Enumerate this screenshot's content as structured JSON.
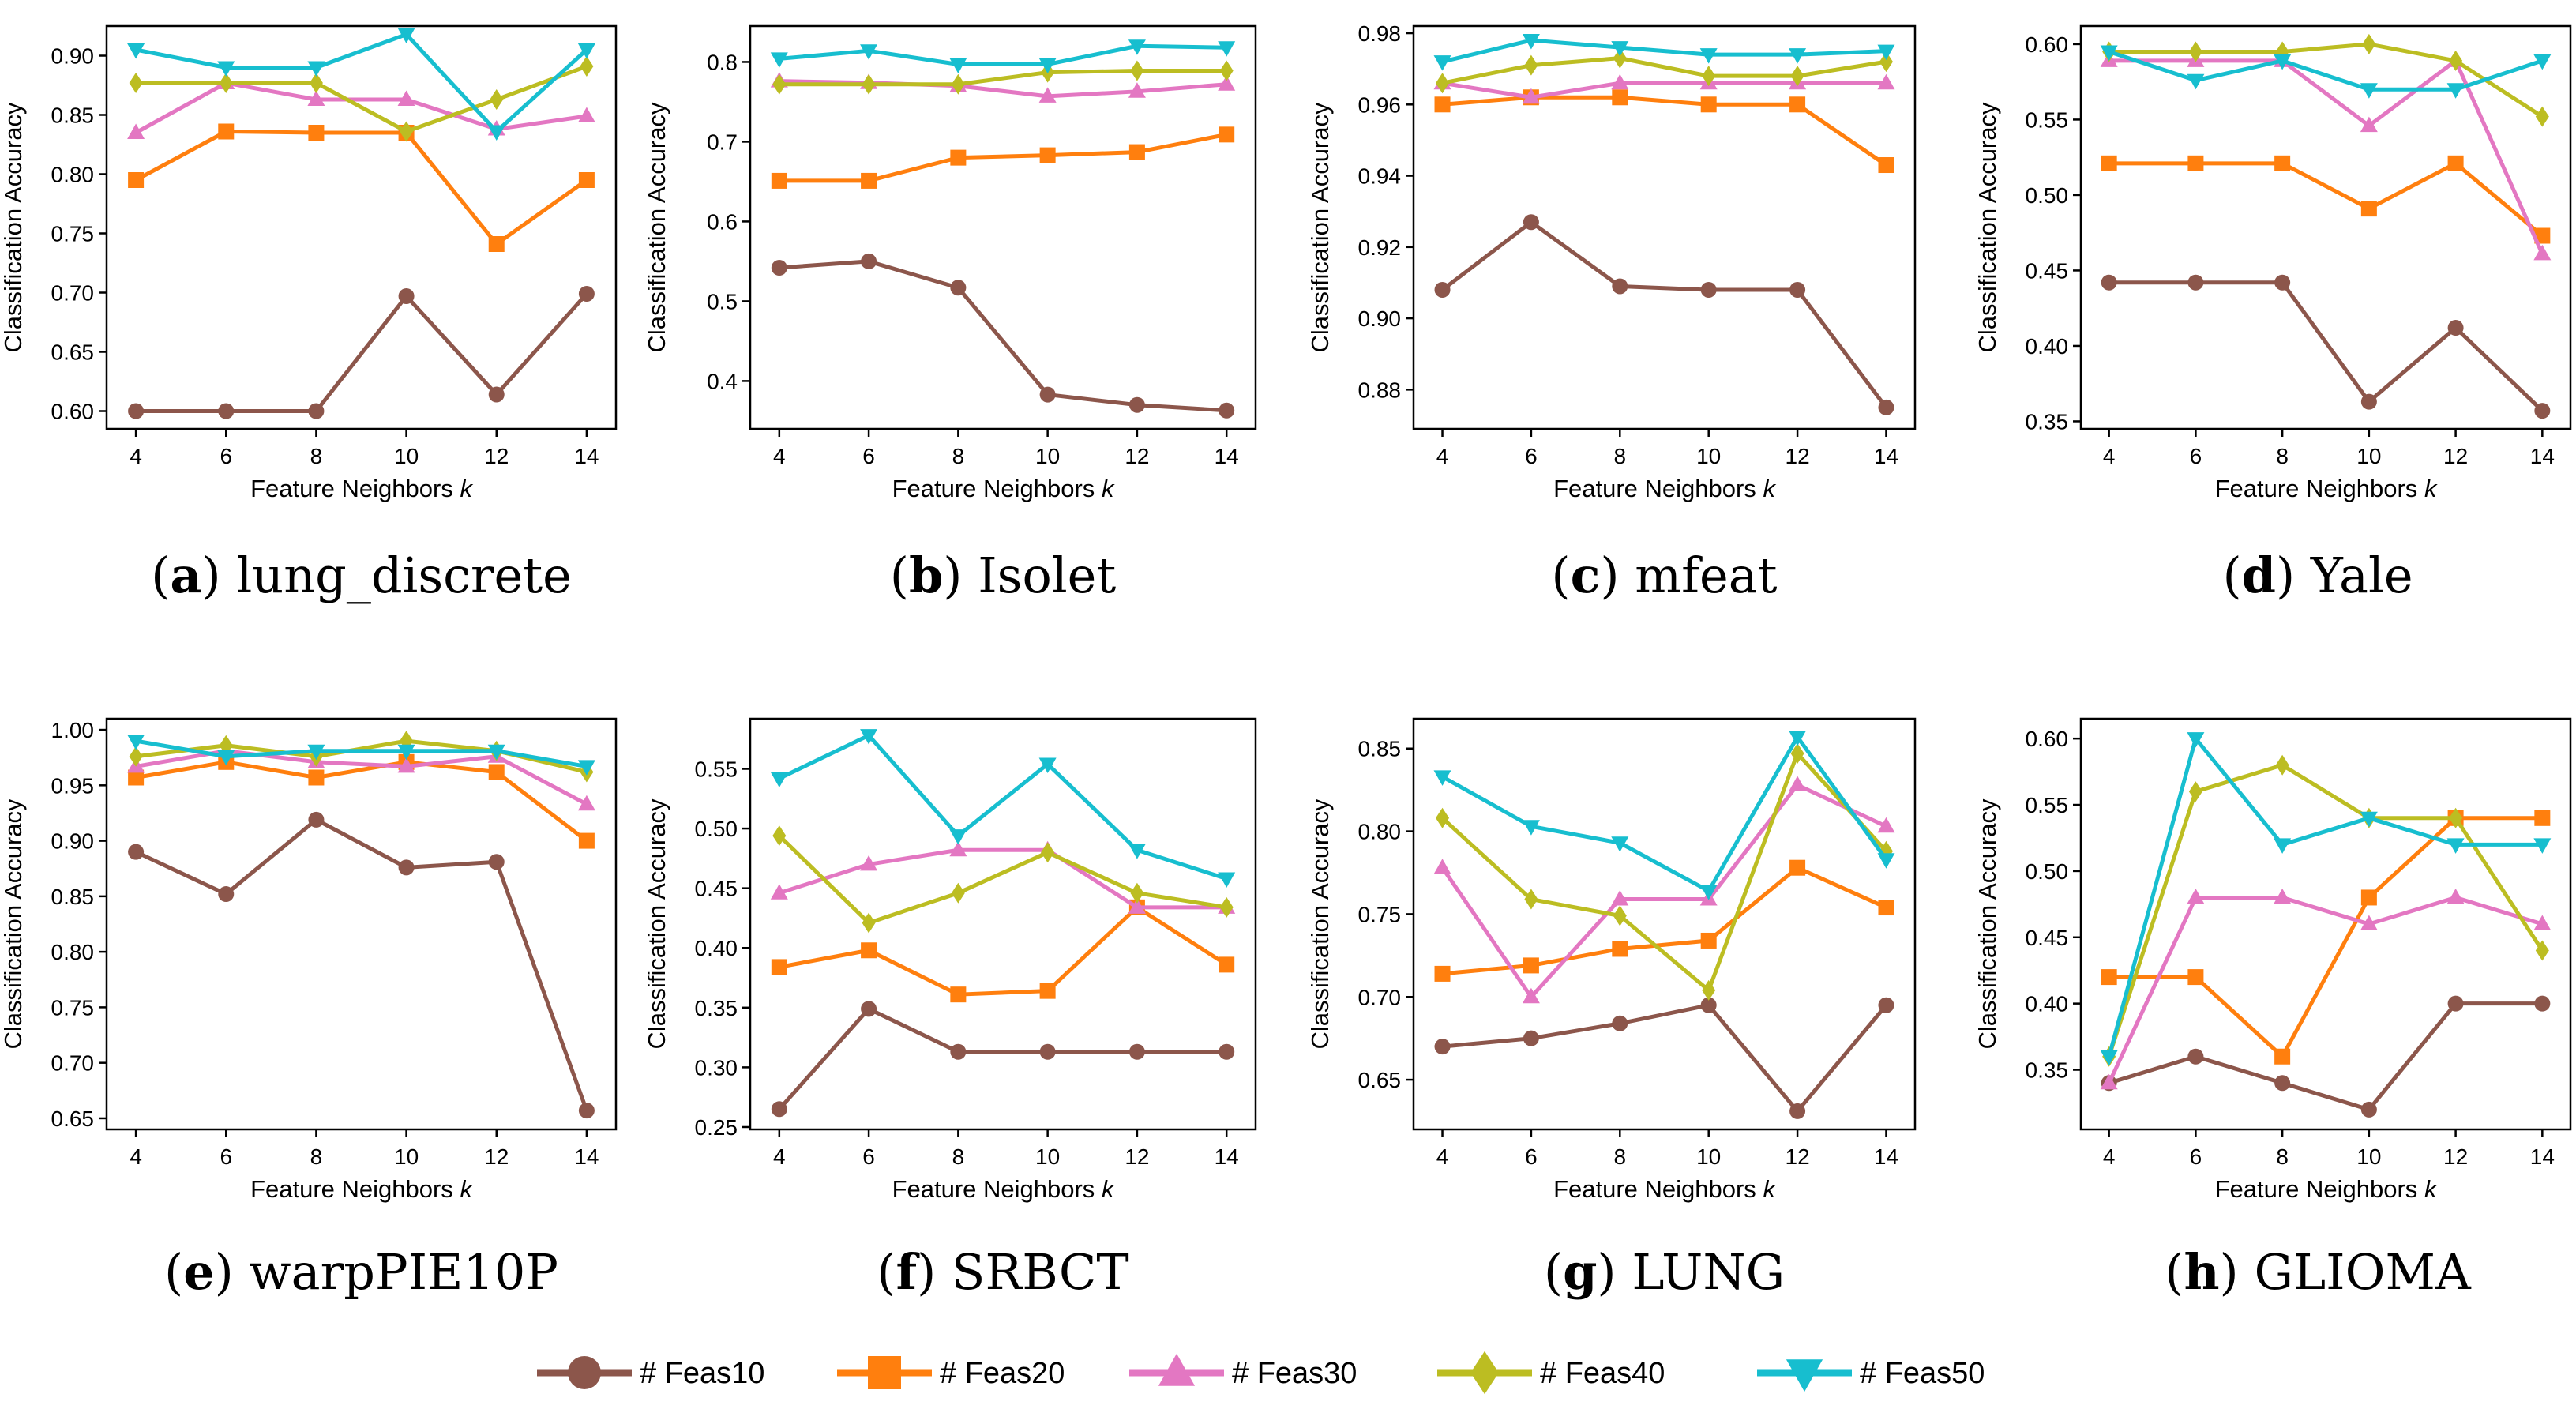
{
  "series_styles": [
    {
      "name": "# Feas10",
      "color": "#8c564b",
      "marker": "circle"
    },
    {
      "name": "# Feas20",
      "color": "#ff7f0e",
      "marker": "square"
    },
    {
      "name": "# Feas30",
      "color": "#e377c2",
      "marker": "triangle-up"
    },
    {
      "name": "# Feas40",
      "color": "#bcbd22",
      "marker": "diamond"
    },
    {
      "name": "# Feas50",
      "color": "#17becf",
      "marker": "triangle-down"
    }
  ],
  "chart_data": [
    {
      "type": "line",
      "letter": "a",
      "caption": "lung_discrete",
      "x": [
        4,
        6,
        8,
        10,
        12,
        14
      ],
      "xlabel": "Feature Neighbors",
      "xlabel_var": "k",
      "ylabel": "Classification Accuracy",
      "ylim": [
        0.585,
        0.925
      ],
      "yticks": [
        "0.60",
        "0.65",
        "0.70",
        "0.75",
        "0.80",
        "0.85",
        "0.90"
      ],
      "xticks": [
        "4",
        "6",
        "8",
        "10",
        "12",
        "14"
      ],
      "series": [
        {
          "name": "# Feas10",
          "values": [
            0.6,
            0.6,
            0.6,
            0.697,
            0.614,
            0.699
          ]
        },
        {
          "name": "# Feas20",
          "values": [
            0.795,
            0.836,
            0.835,
            0.835,
            0.741,
            0.795
          ]
        },
        {
          "name": "# Feas30",
          "values": [
            0.835,
            0.877,
            0.863,
            0.863,
            0.838,
            0.849
          ]
        },
        {
          "name": "# Feas40",
          "values": [
            0.877,
            0.877,
            0.877,
            0.836,
            0.863,
            0.891
          ]
        },
        {
          "name": "# Feas50",
          "values": [
            0.905,
            0.89,
            0.89,
            0.918,
            0.836,
            0.905
          ]
        }
      ]
    },
    {
      "type": "line",
      "letter": "b",
      "caption": "Isolet",
      "x": [
        4,
        6,
        8,
        10,
        12,
        14
      ],
      "xlabel": "Feature Neighbors",
      "xlabel_var": "k",
      "ylabel": "Classification Accuracy",
      "ylim": [
        0.34,
        0.845
      ],
      "yticks": [
        "0.4",
        "0.5",
        "0.6",
        "0.7",
        "0.8"
      ],
      "xticks": [
        "4",
        "6",
        "8",
        "10",
        "12",
        "14"
      ],
      "series": [
        {
          "name": "# Feas10",
          "values": [
            0.542,
            0.55,
            0.517,
            0.383,
            0.37,
            0.363
          ]
        },
        {
          "name": "# Feas20",
          "values": [
            0.651,
            0.651,
            0.68,
            0.683,
            0.687,
            0.709
          ]
        },
        {
          "name": "# Feas30",
          "values": [
            0.776,
            0.774,
            0.77,
            0.757,
            0.763,
            0.772
          ]
        },
        {
          "name": "# Feas40",
          "values": [
            0.772,
            0.772,
            0.772,
            0.787,
            0.789,
            0.789
          ]
        },
        {
          "name": "# Feas50",
          "values": [
            0.804,
            0.814,
            0.797,
            0.797,
            0.82,
            0.818
          ]
        }
      ]
    },
    {
      "type": "line",
      "letter": "c",
      "caption": "mfeat",
      "x": [
        4,
        6,
        8,
        10,
        12,
        14
      ],
      "xlabel": "Feature Neighbors",
      "xlabel_var": "k",
      "ylabel": "Classification Accuracy",
      "ylim": [
        0.869,
        0.982
      ],
      "yticks": [
        "0.88",
        "0.90",
        "0.92",
        "0.94",
        "0.96",
        "0.98"
      ],
      "xticks": [
        "4",
        "6",
        "8",
        "10",
        "12",
        "14"
      ],
      "series": [
        {
          "name": "# Feas10",
          "values": [
            0.908,
            0.927,
            0.909,
            0.908,
            0.908,
            0.875
          ]
        },
        {
          "name": "# Feas20",
          "values": [
            0.96,
            0.962,
            0.962,
            0.96,
            0.96,
            0.943
          ]
        },
        {
          "name": "# Feas30",
          "values": [
            0.966,
            0.962,
            0.966,
            0.966,
            0.966,
            0.966
          ]
        },
        {
          "name": "# Feas40",
          "values": [
            0.966,
            0.971,
            0.973,
            0.968,
            0.968,
            0.972
          ]
        },
        {
          "name": "# Feas50",
          "values": [
            0.972,
            0.978,
            0.976,
            0.974,
            0.974,
            0.975
          ]
        }
      ]
    },
    {
      "type": "line",
      "letter": "d",
      "caption": "Yale",
      "x": [
        4,
        6,
        8,
        10,
        12,
        14
      ],
      "xlabel": "Feature Neighbors",
      "xlabel_var": "k",
      "ylabel": "Classification Accuracy",
      "ylim": [
        0.345,
        0.612
      ],
      "yticks": [
        "0.35",
        "0.40",
        "0.45",
        "0.50",
        "0.55",
        "0.60"
      ],
      "xticks": [
        "4",
        "6",
        "8",
        "10",
        "12",
        "14"
      ],
      "series": [
        {
          "name": "# Feas10",
          "values": [
            0.442,
            0.442,
            0.442,
            0.363,
            0.412,
            0.357
          ]
        },
        {
          "name": "# Feas20",
          "values": [
            0.521,
            0.521,
            0.521,
            0.491,
            0.521,
            0.473
          ]
        },
        {
          "name": "# Feas30",
          "values": [
            0.589,
            0.589,
            0.589,
            0.546,
            0.589,
            0.461
          ]
        },
        {
          "name": "# Feas40",
          "values": [
            0.595,
            0.595,
            0.595,
            0.6,
            0.589,
            0.552
          ]
        },
        {
          "name": "# Feas50",
          "values": [
            0.595,
            0.576,
            0.589,
            0.57,
            0.57,
            0.589
          ]
        }
      ]
    },
    {
      "type": "line",
      "letter": "e",
      "caption": "warpPIE10P",
      "x": [
        4,
        6,
        8,
        10,
        12,
        14
      ],
      "xlabel": "Feature Neighbors",
      "xlabel_var": "k",
      "ylabel": "Classification Accuracy",
      "ylim": [
        0.64,
        1.01
      ],
      "yticks": [
        "0.65",
        "0.70",
        "0.75",
        "0.80",
        "0.85",
        "0.90",
        "0.95",
        "1.00"
      ],
      "xticks": [
        "4",
        "6",
        "8",
        "10",
        "12",
        "14"
      ],
      "series": [
        {
          "name": "# Feas10",
          "values": [
            0.89,
            0.852,
            0.919,
            0.876,
            0.881,
            0.657
          ]
        },
        {
          "name": "# Feas20",
          "values": [
            0.957,
            0.971,
            0.957,
            0.971,
            0.962,
            0.9
          ]
        },
        {
          "name": "# Feas30",
          "values": [
            0.967,
            0.981,
            0.971,
            0.967,
            0.976,
            0.933
          ]
        },
        {
          "name": "# Feas40",
          "values": [
            0.976,
            0.986,
            0.976,
            0.99,
            0.981,
            0.962
          ]
        },
        {
          "name": "# Feas50",
          "values": [
            0.99,
            0.976,
            0.981,
            0.981,
            0.981,
            0.967
          ]
        }
      ]
    },
    {
      "type": "line",
      "letter": "f",
      "caption": "SRBCT",
      "x": [
        4,
        6,
        8,
        10,
        12,
        14
      ],
      "xlabel": "Feature Neighbors",
      "xlabel_var": "k",
      "ylabel": "Classification Accuracy",
      "ylim": [
        0.248,
        0.592
      ],
      "yticks": [
        "0.25",
        "0.30",
        "0.35",
        "0.40",
        "0.45",
        "0.50",
        "0.55"
      ],
      "xticks": [
        "4",
        "6",
        "8",
        "10",
        "12",
        "14"
      ],
      "series": [
        {
          "name": "# Feas10",
          "values": [
            0.265,
            0.349,
            0.313,
            0.313,
            0.313,
            0.313
          ]
        },
        {
          "name": "# Feas20",
          "values": [
            0.384,
            0.398,
            0.361,
            0.364,
            0.434,
            0.386
          ]
        },
        {
          "name": "# Feas30",
          "values": [
            0.446,
            0.47,
            0.482,
            0.482,
            0.434,
            0.434
          ]
        },
        {
          "name": "# Feas40",
          "values": [
            0.494,
            0.421,
            0.446,
            0.48,
            0.446,
            0.434
          ]
        },
        {
          "name": "# Feas50",
          "values": [
            0.542,
            0.578,
            0.494,
            0.554,
            0.482,
            0.458
          ]
        }
      ]
    },
    {
      "type": "line",
      "letter": "g",
      "caption": "LUNG",
      "x": [
        4,
        6,
        8,
        10,
        12,
        14
      ],
      "xlabel": "Feature Neighbors",
      "xlabel_var": "k",
      "ylabel": "Classification Accuracy",
      "ylim": [
        0.62,
        0.868
      ],
      "yticks": [
        "0.65",
        "0.70",
        "0.75",
        "0.80",
        "0.85"
      ],
      "xticks": [
        "4",
        "6",
        "8",
        "10",
        "12",
        "14"
      ],
      "series": [
        {
          "name": "# Feas10",
          "values": [
            0.67,
            0.675,
            0.684,
            0.695,
            0.631,
            0.695
          ]
        },
        {
          "name": "# Feas20",
          "values": [
            0.714,
            0.719,
            0.729,
            0.734,
            0.778,
            0.754
          ]
        },
        {
          "name": "# Feas30",
          "values": [
            0.778,
            0.7,
            0.759,
            0.759,
            0.828,
            0.803
          ]
        },
        {
          "name": "# Feas40",
          "values": [
            0.808,
            0.759,
            0.749,
            0.704,
            0.847,
            0.788
          ]
        },
        {
          "name": "# Feas50",
          "values": [
            0.833,
            0.803,
            0.793,
            0.764,
            0.857,
            0.783
          ]
        }
      ]
    },
    {
      "type": "line",
      "letter": "h",
      "caption": "GLIOMA",
      "x": [
        4,
        6,
        8,
        10,
        12,
        14
      ],
      "xlabel": "Feature Neighbors",
      "xlabel_var": "k",
      "ylabel": "Classification Accuracy",
      "ylim": [
        0.305,
        0.615
      ],
      "yticks": [
        "0.35",
        "0.40",
        "0.45",
        "0.50",
        "0.55",
        "0.60"
      ],
      "xticks": [
        "4",
        "6",
        "8",
        "10",
        "12",
        "14"
      ],
      "series": [
        {
          "name": "# Feas10",
          "values": [
            0.34,
            0.36,
            0.34,
            0.32,
            0.4,
            0.4
          ]
        },
        {
          "name": "# Feas20",
          "values": [
            0.42,
            0.42,
            0.36,
            0.48,
            0.54,
            0.54
          ]
        },
        {
          "name": "# Feas30",
          "values": [
            0.34,
            0.48,
            0.48,
            0.46,
            0.48,
            0.46
          ]
        },
        {
          "name": "# Feas40",
          "values": [
            0.36,
            0.56,
            0.58,
            0.54,
            0.54,
            0.44
          ]
        },
        {
          "name": "# Feas50",
          "values": [
            0.36,
            0.6,
            0.52,
            0.54,
            0.52,
            0.52
          ]
        }
      ]
    }
  ]
}
